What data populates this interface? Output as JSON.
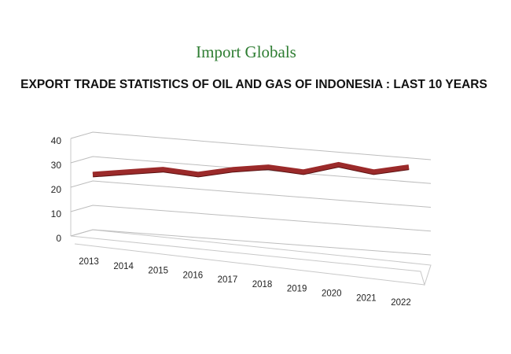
{
  "logo": "Import Globals",
  "chart_data": {
    "type": "line",
    "title": "EXPORT TRADE STATISTICS OF OIL AND GAS OF INDONESIA : LAST 10 YEARS",
    "categories": [
      "2013",
      "2014",
      "2015",
      "2016",
      "2017",
      "2018",
      "2019",
      "2020",
      "2021",
      "2022"
    ],
    "series": [
      {
        "color": "#9b2a2a",
        "values": [
          26,
          27,
          28,
          26,
          28,
          29,
          27,
          30,
          27,
          29
        ]
      }
    ],
    "ylim": [
      0,
      40
    ],
    "yticks": [
      0,
      10,
      20,
      30,
      40
    ],
    "grid": true
  }
}
